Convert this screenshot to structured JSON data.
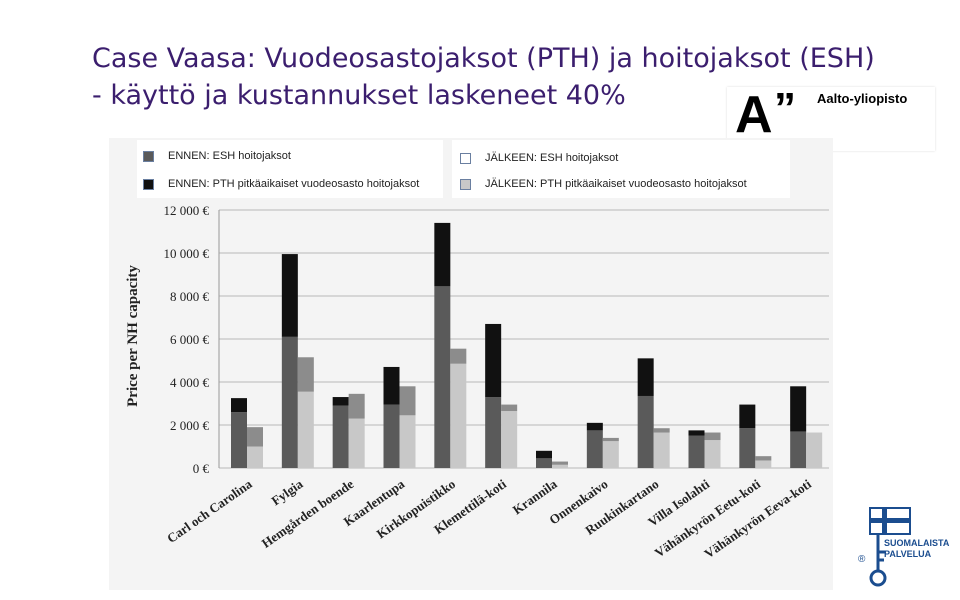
{
  "slide": {
    "title_line1": "Case Vaasa: Vuodeosastojaksot  (PTH) ja hoitojaksot (ESH)",
    "title_line2": "- käyttö ja kustannukset laskeneet  40%"
  },
  "logos": {
    "aalto_mark": "A",
    "aalto_quote": "”",
    "aalto_text": "Aalto-yliopisto",
    "finnish_text_line1": "SUOMALAISTA",
    "finnish_text_line2": "PALVELUA",
    "finnish_mark": "®"
  },
  "legend": {
    "ennen_esh": "ENNEN: ESH hoitojaksot",
    "ennen_pth": "ENNEN: PTH pitkäaikaiset  vuodeosasto hoitojaksot",
    "jalkeen_esh": "JÄLKEEN: ESH hoitojaksot",
    "jalkeen_pth": "JÄLKEEN: PTH pitkäaikaiset  vuodeosasto hoitojaksot"
  },
  "colors": {
    "title": "#3b1e6e",
    "ennen_esh": "#5a5a5a",
    "ennen_pth": "#111111",
    "jalkeen_esh": "#c8c8c8",
    "jalkeen_pth": "#8c8c8c",
    "chart_bg": "#f4f4f4"
  },
  "chart_data": {
    "type": "bar",
    "stacked": true,
    "grouped": true,
    "ylabel": "Price per NH capacity",
    "ylim": [
      0,
      12000
    ],
    "yticks": [
      "0 €",
      "2 000 €",
      "4 000 €",
      "6 000 €",
      "8 000 €",
      "10 000 €",
      "12 000 €"
    ],
    "ytick_values": [
      0,
      2000,
      4000,
      6000,
      8000,
      10000,
      12000
    ],
    "grid": true,
    "legend_position": "top",
    "categories": [
      "Carl och Carolina",
      "Fylgia",
      "Hemgården boende",
      "Kaarlentupa",
      "Kirkkopuistikko",
      "Klemettilä-koti",
      "Krannila",
      "Onnenkaivo",
      "Ruukinkartano",
      "Villa Isolahti",
      "Vähänkyrön Eetu-koti",
      "Vähänkyrön Eeva-koti"
    ],
    "series": [
      {
        "name": "ENNEN: ESH hoitojaksot",
        "group": "ennen",
        "values": [
          2600,
          6100,
          2900,
          2950,
          8450,
          3300,
          450,
          1750,
          3350,
          1500,
          1850,
          1700
        ]
      },
      {
        "name": "ENNEN: PTH pitkäaikaiset  vuodeosasto hoitojaksot",
        "group": "ennen",
        "values": [
          650,
          3850,
          400,
          1750,
          2950,
          3400,
          350,
          350,
          1750,
          250,
          1100,
          2100
        ]
      },
      {
        "name": "JÄLKEEN: ESH hoitojaksot",
        "group": "jalkeen",
        "values": [
          1000,
          3550,
          2300,
          2450,
          4850,
          2650,
          150,
          1250,
          1650,
          1300,
          350,
          1650
        ]
      },
      {
        "name": "JÄLKEEN: PTH pitkäaikaiset  vuodeosasto hoitojaksot",
        "group": "jalkeen",
        "values": [
          900,
          1600,
          1150,
          1350,
          700,
          300,
          150,
          150,
          200,
          350,
          200,
          0
        ]
      }
    ]
  }
}
